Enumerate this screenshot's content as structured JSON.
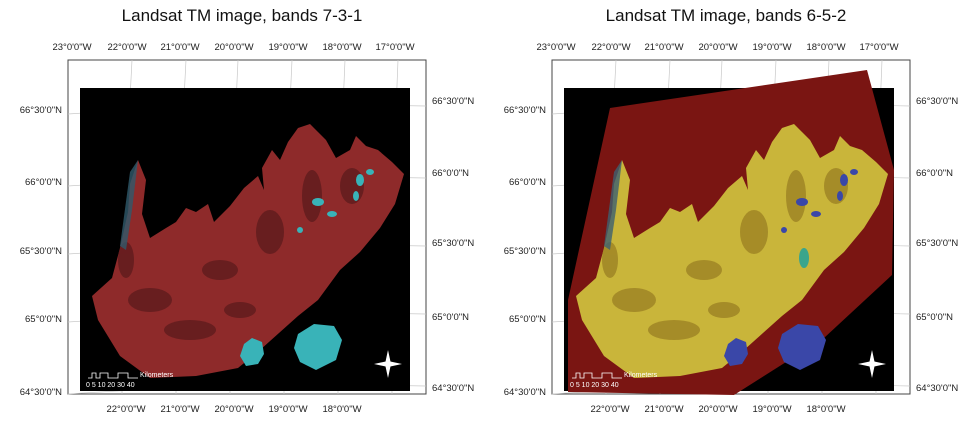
{
  "panels": [
    {
      "title": "Landsat TM image, bands 7-3-1",
      "top_labels": [
        "23°0'0\"W",
        "22°0'0\"W",
        "21°0'0\"W",
        "20°0'0\"W",
        "19°0'0\"W",
        "18°0'0\"W",
        "17°0'0\"W"
      ],
      "bottom_labels": [
        "22°0'0\"W",
        "21°0'0\"W",
        "20°0'0\"W",
        "19°0'0\"W",
        "18°0'0\"W"
      ],
      "left_labels": [
        "66°30'0\"N",
        "66°0'0\"N",
        "65°30'0\"N",
        "65°0'0\"N",
        "64°30'0\"N"
      ],
      "right_labels": [
        "66°30'0\"N",
        "66°0'0\"N",
        "65°30'0\"N",
        "65°0'0\"N",
        "64°30'0\"N"
      ],
      "scale_unit": "Kilometers",
      "scale_ticks": "0 5 10  20  30  40",
      "composite": "bands 7-3-1",
      "colors": {
        "land": "#8e2a2a",
        "land_dark": "#5c1a1c",
        "ice": "#39b3b8",
        "water": "#0b0b0b",
        "strip": "#2f5a6b"
      }
    },
    {
      "title": "Landsat TM image, bands 6-5-2",
      "top_labels": [
        "23°0'0\"W",
        "22°0'0\"W",
        "21°0'0\"W",
        "20°0'0\"W",
        "19°0'0\"W",
        "18°0'0\"W",
        "17°0'0\"W"
      ],
      "bottom_labels": [
        "22°0'0\"W",
        "21°0'0\"W",
        "20°0'0\"W",
        "19°0'0\"W",
        "18°0'0\"W"
      ],
      "left_labels": [
        "66°30'0\"N",
        "66°0'0\"N",
        "65°30'0\"N",
        "65°0'0\"N",
        "64°30'0\"N"
      ],
      "right_labels": [
        "66°30'0\"N",
        "66°0'0\"N",
        "65°30'0\"N",
        "65°0'0\"N",
        "64°30'0\"N"
      ],
      "scale_unit": "Kilometers",
      "scale_ticks": "0 5 10  20  30  40",
      "composite": "bands 6-5-2",
      "colors": {
        "land": "#c9b53a",
        "land_dark": "#9a7f22",
        "ice": "#3a47a8",
        "water": "#7a1512",
        "strip": "#3d6070"
      }
    }
  ]
}
